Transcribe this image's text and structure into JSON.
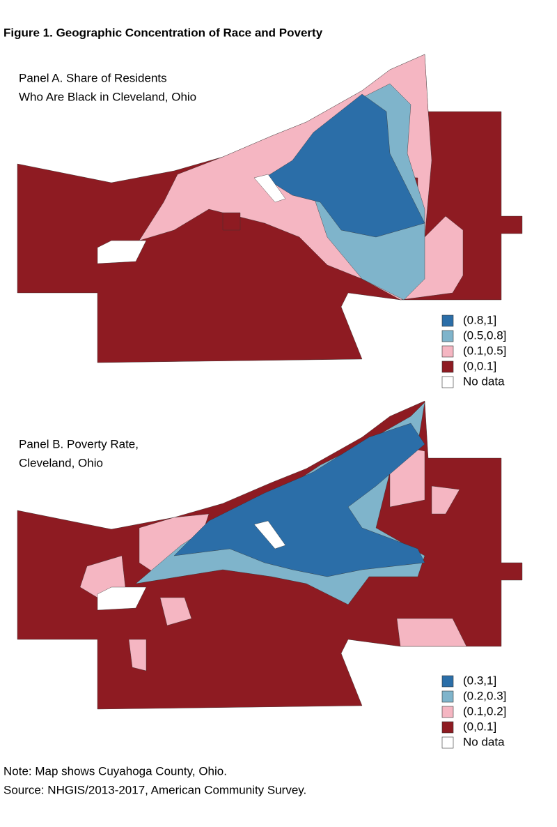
{
  "title": "Figure 1. Geographic Concentration of Race and Poverty",
  "panels": [
    {
      "title_lines": [
        "Panel A. Share of Residents",
        "Who Are Black in Cleveland, Ohio"
      ],
      "legend": [
        {
          "label": "(0.8,1]",
          "color": "#2b6ea8"
        },
        {
          "label": "(0.5,0.8]",
          "color": "#7fb4cb"
        },
        {
          "label": "(0.1,0.5]",
          "color": "#f5b6c2"
        },
        {
          "label": "(0,0.1]",
          "color": "#8e1b22"
        },
        {
          "label": "No data",
          "color": "#ffffff"
        }
      ]
    },
    {
      "title_lines": [
        "Panel B. Poverty Rate,",
        "Cleveland, Ohio"
      ],
      "legend": [
        {
          "label": "(0.3,1]",
          "color": "#2b6ea8"
        },
        {
          "label": "(0.2,0.3]",
          "color": "#7fb4cb"
        },
        {
          "label": "(0.1,0.2]",
          "color": "#f5b6c2"
        },
        {
          "label": "(0,0.1]",
          "color": "#8e1b22"
        },
        {
          "label": "No data",
          "color": "#ffffff"
        }
      ]
    }
  ],
  "note": "Note: Map shows Cuyahoga County, Ohio.",
  "source": "Source: NHGIS/2013-2017, American Community Survey."
}
